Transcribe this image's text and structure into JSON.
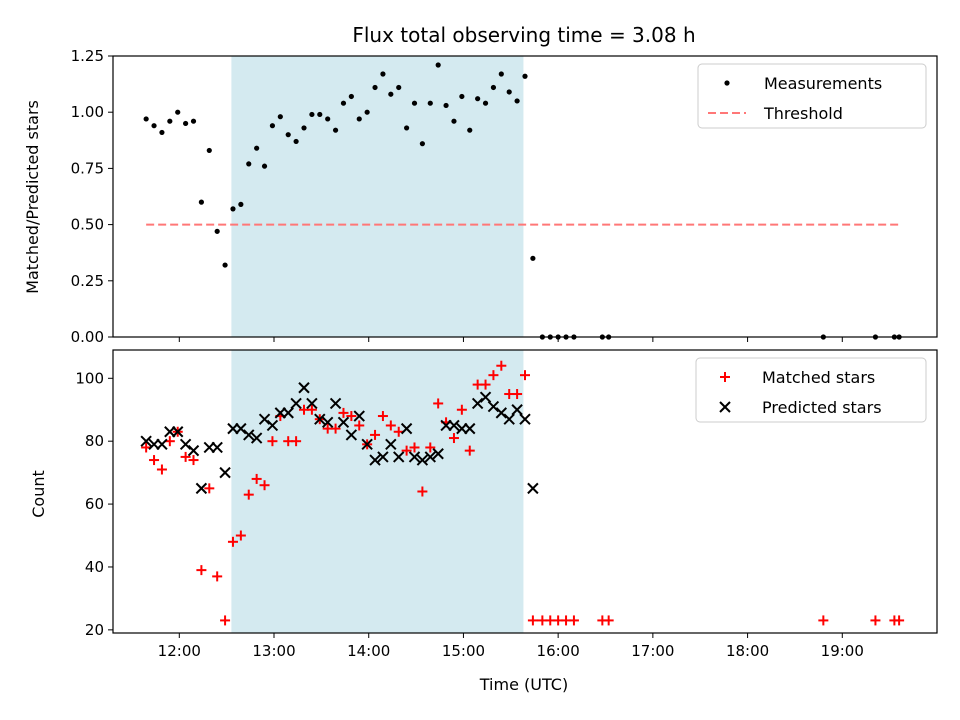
{
  "chart_data": [
    {
      "type": "scatter",
      "title": "Flux total observing time = 3.08 h",
      "xlabel": "",
      "ylabel": "Matched/Predicted stars",
      "ylim": [
        0,
        1.25
      ],
      "yticks": [
        "0.00",
        "0.25",
        "0.50",
        "0.75",
        "1.00",
        "1.25"
      ],
      "xlim": [
        "11:18",
        "20:00"
      ],
      "shaded_interval": {
        "start": "12:33",
        "end": "15:38",
        "color": "#d4eaf0"
      },
      "legend": {
        "placement": "top-right"
      },
      "series": [
        {
          "name": "Measurements",
          "marker": "dot",
          "color": "#000000",
          "points": [
            [
              "11:39",
              0.97
            ],
            [
              "11:44",
              0.94
            ],
            [
              "11:49",
              0.91
            ],
            [
              "11:54",
              0.96
            ],
            [
              "11:59",
              1.0
            ],
            [
              "12:04",
              0.95
            ],
            [
              "12:09",
              0.96
            ],
            [
              "12:14",
              0.6
            ],
            [
              "12:19",
              0.83
            ],
            [
              "12:24",
              0.47
            ],
            [
              "12:29",
              0.32
            ],
            [
              "12:34",
              0.57
            ],
            [
              "12:39",
              0.59
            ],
            [
              "12:44",
              0.77
            ],
            [
              "12:49",
              0.84
            ],
            [
              "12:54",
              0.76
            ],
            [
              "12:59",
              0.94
            ],
            [
              "13:04",
              0.98
            ],
            [
              "13:09",
              0.9
            ],
            [
              "13:14",
              0.87
            ],
            [
              "13:19",
              0.93
            ],
            [
              "13:24",
              0.99
            ],
            [
              "13:29",
              0.99
            ],
            [
              "13:34",
              0.97
            ],
            [
              "13:39",
              0.92
            ],
            [
              "13:44",
              1.04
            ],
            [
              "13:49",
              1.07
            ],
            [
              "13:54",
              0.97
            ],
            [
              "13:59",
              1.0
            ],
            [
              "14:04",
              1.11
            ],
            [
              "14:09",
              1.17
            ],
            [
              "14:14",
              1.08
            ],
            [
              "14:19",
              1.11
            ],
            [
              "14:24",
              0.93
            ],
            [
              "14:29",
              1.04
            ],
            [
              "14:34",
              0.86
            ],
            [
              "14:39",
              1.04
            ],
            [
              "14:44",
              1.21
            ],
            [
              "14:49",
              1.03
            ],
            [
              "14:54",
              0.96
            ],
            [
              "14:59",
              1.07
            ],
            [
              "15:04",
              0.92
            ],
            [
              "15:09",
              1.06
            ],
            [
              "15:14",
              1.04
            ],
            [
              "15:19",
              1.11
            ],
            [
              "15:24",
              1.17
            ],
            [
              "15:29",
              1.09
            ],
            [
              "15:34",
              1.05
            ],
            [
              "15:39",
              1.16
            ],
            [
              "15:44",
              0.35
            ],
            [
              "15:50",
              0.0
            ],
            [
              "15:55",
              0.0
            ],
            [
              "16:00",
              0.0
            ],
            [
              "16:05",
              0.0
            ],
            [
              "16:10",
              0.0
            ],
            [
              "16:28",
              0.0
            ],
            [
              "16:32",
              0.0
            ],
            [
              "18:48",
              0.0
            ],
            [
              "19:21",
              0.0
            ],
            [
              "19:33",
              0.0
            ],
            [
              "19:36",
              0.0
            ]
          ]
        },
        {
          "name": "Threshold",
          "type": "line",
          "style": "dashed",
          "color": "#ff7777",
          "points": [
            [
              "11:39",
              0.5
            ],
            [
              "19:36",
              0.5
            ]
          ]
        }
      ]
    },
    {
      "type": "scatter",
      "title": "",
      "xlabel": "Time (UTC)",
      "ylabel": "Count",
      "ylim": [
        19,
        109
      ],
      "yticks": [
        "20",
        "40",
        "60",
        "80",
        "100"
      ],
      "xlim": [
        "11:18",
        "20:00"
      ],
      "xticks": [
        "12:00",
        "13:00",
        "14:00",
        "15:00",
        "16:00",
        "17:00",
        "18:00",
        "19:00"
      ],
      "shaded_interval": {
        "start": "12:33",
        "end": "15:38",
        "color": "#d4eaf0"
      },
      "legend": {
        "placement": "top-right"
      },
      "series": [
        {
          "name": "Matched stars",
          "marker": "plus",
          "color": "#ff0000",
          "points": [
            [
              "11:39",
              78
            ],
            [
              "11:44",
              74
            ],
            [
              "11:49",
              71
            ],
            [
              "11:54",
              80
            ],
            [
              "11:59",
              83
            ],
            [
              "12:04",
              75
            ],
            [
              "12:09",
              74
            ],
            [
              "12:14",
              39
            ],
            [
              "12:19",
              65
            ],
            [
              "12:24",
              37
            ],
            [
              "12:29",
              23
            ],
            [
              "12:34",
              48
            ],
            [
              "12:39",
              50
            ],
            [
              "12:44",
              63
            ],
            [
              "12:49",
              68
            ],
            [
              "12:54",
              66
            ],
            [
              "12:59",
              80
            ],
            [
              "13:04",
              88
            ],
            [
              "13:09",
              80
            ],
            [
              "13:14",
              80
            ],
            [
              "13:19",
              90
            ],
            [
              "13:24",
              90
            ],
            [
              "13:29",
              87
            ],
            [
              "13:34",
              84
            ],
            [
              "13:39",
              84
            ],
            [
              "13:44",
              89
            ],
            [
              "13:49",
              88
            ],
            [
              "13:54",
              85
            ],
            [
              "13:59",
              79
            ],
            [
              "14:04",
              82
            ],
            [
              "14:09",
              88
            ],
            [
              "14:14",
              85
            ],
            [
              "14:19",
              83
            ],
            [
              "14:24",
              77
            ],
            [
              "14:29",
              78
            ],
            [
              "14:34",
              64
            ],
            [
              "14:39",
              78
            ],
            [
              "14:44",
              92
            ],
            [
              "14:49",
              86
            ],
            [
              "14:54",
              81
            ],
            [
              "14:59",
              90
            ],
            [
              "15:04",
              77
            ],
            [
              "15:09",
              98
            ],
            [
              "15:14",
              98
            ],
            [
              "15:19",
              101
            ],
            [
              "15:24",
              104
            ],
            [
              "15:29",
              95
            ],
            [
              "15:34",
              95
            ],
            [
              "15:39",
              101
            ],
            [
              "15:44",
              23
            ],
            [
              "15:50",
              23
            ],
            [
              "15:55",
              23
            ],
            [
              "16:00",
              23
            ],
            [
              "16:05",
              23
            ],
            [
              "16:10",
              23
            ],
            [
              "16:28",
              23
            ],
            [
              "16:32",
              23
            ],
            [
              "18:48",
              23
            ],
            [
              "19:21",
              23
            ],
            [
              "19:33",
              23
            ],
            [
              "19:36",
              23
            ]
          ]
        },
        {
          "name": "Predicted stars",
          "marker": "x",
          "color": "#000000",
          "points": [
            [
              "11:39",
              80
            ],
            [
              "11:44",
              79
            ],
            [
              "11:49",
              79
            ],
            [
              "11:54",
              83
            ],
            [
              "11:59",
              83
            ],
            [
              "12:04",
              79
            ],
            [
              "12:09",
              77
            ],
            [
              "12:14",
              65
            ],
            [
              "12:19",
              78
            ],
            [
              "12:24",
              78
            ],
            [
              "12:29",
              70
            ],
            [
              "12:34",
              84
            ],
            [
              "12:39",
              84
            ],
            [
              "12:44",
              82
            ],
            [
              "12:49",
              81
            ],
            [
              "12:54",
              87
            ],
            [
              "12:59",
              85
            ],
            [
              "13:04",
              89
            ],
            [
              "13:09",
              89
            ],
            [
              "13:14",
              92
            ],
            [
              "13:19",
              97
            ],
            [
              "13:24",
              92
            ],
            [
              "13:29",
              87
            ],
            [
              "13:34",
              86
            ],
            [
              "13:39",
              92
            ],
            [
              "13:44",
              86
            ],
            [
              "13:49",
              82
            ],
            [
              "13:54",
              88
            ],
            [
              "13:59",
              79
            ],
            [
              "14:04",
              74
            ],
            [
              "14:09",
              75
            ],
            [
              "14:14",
              79
            ],
            [
              "14:19",
              75
            ],
            [
              "14:24",
              84
            ],
            [
              "14:29",
              75
            ],
            [
              "14:34",
              74
            ],
            [
              "14:39",
              75
            ],
            [
              "14:44",
              76
            ],
            [
              "14:49",
              85
            ],
            [
              "14:54",
              85
            ],
            [
              "14:59",
              84
            ],
            [
              "15:04",
              84
            ],
            [
              "15:09",
              92
            ],
            [
              "15:14",
              94
            ],
            [
              "15:19",
              91
            ],
            [
              "15:24",
              89
            ],
            [
              "15:29",
              87
            ],
            [
              "15:34",
              90
            ],
            [
              "15:39",
              87
            ],
            [
              "15:44",
              65
            ]
          ]
        }
      ]
    }
  ]
}
